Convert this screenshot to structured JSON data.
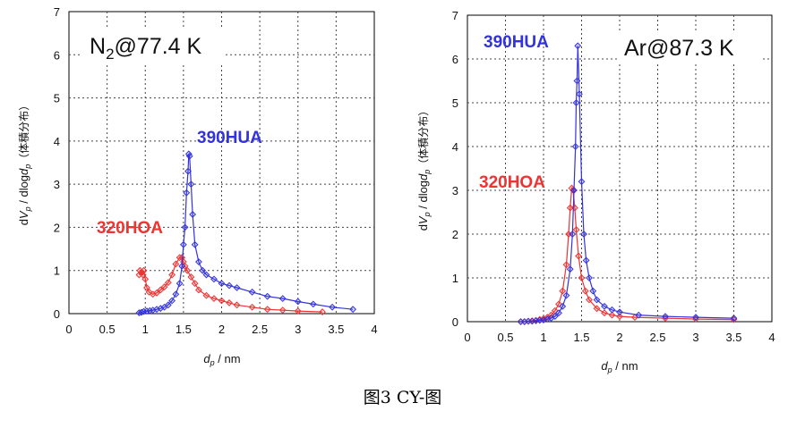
{
  "caption": "图3 CY-图",
  "charts": [
    {
      "type": "line",
      "condition": {
        "main": "N",
        "sub": "2",
        "rest": "@77.4 K"
      },
      "xlabel": {
        "main": "d",
        "sub": "p",
        "rest": " / nm"
      },
      "ylabel": {
        "a": "d",
        "b": "V",
        "bs": "p",
        "c": " / dlog",
        "d": "d",
        "ds": "p",
        "e": "（体積分布）"
      },
      "xlim": [
        0,
        4
      ],
      "ylim": [
        0,
        7
      ],
      "xticks": [
        "0",
        "0.5",
        "1",
        "1.5",
        "2",
        "2.5",
        "3",
        "3.5",
        "4"
      ],
      "yticks": [
        "0",
        "1",
        "2",
        "3",
        "4",
        "5",
        "6",
        "7"
      ],
      "grid": true,
      "series": [
        {
          "name": "390HUA",
          "color": "#3333dd",
          "points": [
            [
              0.92,
              0.02
            ],
            [
              0.95,
              0.03
            ],
            [
              0.98,
              0.05
            ],
            [
              1.02,
              0.06
            ],
            [
              1.06,
              0.07
            ],
            [
              1.1,
              0.08
            ],
            [
              1.15,
              0.1
            ],
            [
              1.2,
              0.12
            ],
            [
              1.25,
              0.15
            ],
            [
              1.3,
              0.2
            ],
            [
              1.35,
              0.3
            ],
            [
              1.4,
              0.45
            ],
            [
              1.45,
              0.7
            ],
            [
              1.48,
              1.1
            ],
            [
              1.5,
              1.6
            ],
            [
              1.52,
              2.0
            ],
            [
              1.54,
              2.8
            ],
            [
              1.56,
              3.3
            ],
            [
              1.57,
              3.7
            ],
            [
              1.58,
              3.65
            ],
            [
              1.6,
              3.0
            ],
            [
              1.62,
              2.3
            ],
            [
              1.65,
              1.6
            ],
            [
              1.7,
              1.2
            ],
            [
              1.75,
              1.0
            ],
            [
              1.8,
              0.9
            ],
            [
              1.9,
              0.8
            ],
            [
              2.0,
              0.7
            ],
            [
              2.1,
              0.65
            ],
            [
              2.2,
              0.6
            ],
            [
              2.4,
              0.5
            ],
            [
              2.6,
              0.4
            ],
            [
              2.8,
              0.35
            ],
            [
              3.0,
              0.28
            ],
            [
              3.2,
              0.22
            ],
            [
              3.45,
              0.15
            ],
            [
              3.72,
              0.1
            ]
          ]
        },
        {
          "name": "320HOA",
          "color": "#ee3333",
          "points": [
            [
              0.92,
              0.9
            ],
            [
              0.93,
              1.0
            ],
            [
              0.95,
              0.95
            ],
            [
              0.97,
              0.9
            ],
            [
              0.98,
              1.0
            ],
            [
              1.0,
              0.8
            ],
            [
              1.02,
              0.6
            ],
            [
              1.05,
              0.5
            ],
            [
              1.1,
              0.45
            ],
            [
              1.15,
              0.48
            ],
            [
              1.2,
              0.55
            ],
            [
              1.25,
              0.62
            ],
            [
              1.3,
              0.72
            ],
            [
              1.35,
              0.9
            ],
            [
              1.4,
              1.15
            ],
            [
              1.45,
              1.3
            ],
            [
              1.48,
              1.3
            ],
            [
              1.5,
              1.2
            ],
            [
              1.52,
              1.1
            ],
            [
              1.55,
              1.0
            ],
            [
              1.6,
              0.85
            ],
            [
              1.65,
              0.7
            ],
            [
              1.7,
              0.55
            ],
            [
              1.8,
              0.42
            ],
            [
              1.9,
              0.35
            ],
            [
              2.0,
              0.3
            ],
            [
              2.1,
              0.25
            ],
            [
              2.2,
              0.2
            ],
            [
              2.4,
              0.15
            ],
            [
              2.6,
              0.1
            ],
            [
              2.8,
              0.08
            ],
            [
              3.0,
              0.06
            ],
            [
              3.32,
              0.04
            ]
          ]
        }
      ]
    },
    {
      "type": "line",
      "condition": {
        "main": "Ar@87.3 K",
        "sub": "",
        "rest": ""
      },
      "xlabel": {
        "main": "d",
        "sub": "p",
        "rest": " / nm"
      },
      "ylabel": {
        "a": "d",
        "b": "V",
        "bs": "p",
        "c": " / dlog",
        "d": "d",
        "ds": "p",
        "e": "（体積分布）"
      },
      "xlim": [
        0,
        4
      ],
      "ylim": [
        0,
        7
      ],
      "xticks": [
        "0",
        "0.5",
        "1",
        "1.5",
        "2",
        "2.5",
        "3",
        "3.5",
        "4"
      ],
      "yticks": [
        "0",
        "1",
        "2",
        "3",
        "4",
        "5",
        "6",
        "7"
      ],
      "grid": true,
      "series": [
        {
          "name": "390HUA",
          "color": "#3333dd",
          "points": [
            [
              0.7,
              0.0
            ],
            [
              0.75,
              0.0
            ],
            [
              0.8,
              0.01
            ],
            [
              0.85,
              0.01
            ],
            [
              0.9,
              0.02
            ],
            [
              0.95,
              0.03
            ],
            [
              1.0,
              0.04
            ],
            [
              1.05,
              0.06
            ],
            [
              1.1,
              0.08
            ],
            [
              1.15,
              0.12
            ],
            [
              1.2,
              0.2
            ],
            [
              1.25,
              0.35
            ],
            [
              1.3,
              0.6
            ],
            [
              1.35,
              1.2
            ],
            [
              1.38,
              2.0
            ],
            [
              1.4,
              3.0
            ],
            [
              1.42,
              4.0
            ],
            [
              1.43,
              5.0
            ],
            [
              1.44,
              5.5
            ],
            [
              1.45,
              6.3
            ],
            [
              1.47,
              5.2
            ],
            [
              1.5,
              3.2
            ],
            [
              1.53,
              2.0
            ],
            [
              1.56,
              1.4
            ],
            [
              1.6,
              1.0
            ],
            [
              1.65,
              0.7
            ],
            [
              1.7,
              0.5
            ],
            [
              1.8,
              0.35
            ],
            [
              1.9,
              0.27
            ],
            [
              2.0,
              0.22
            ],
            [
              2.25,
              0.15
            ],
            [
              2.6,
              0.12
            ],
            [
              3.0,
              0.1
            ],
            [
              3.5,
              0.08
            ]
          ]
        },
        {
          "name": "320HOA",
          "color": "#ee3333",
          "points": [
            [
              0.7,
              0.0
            ],
            [
              0.75,
              0.0
            ],
            [
              0.8,
              0.01
            ],
            [
              0.85,
              0.02
            ],
            [
              0.9,
              0.03
            ],
            [
              0.95,
              0.05
            ],
            [
              1.0,
              0.07
            ],
            [
              1.05,
              0.1
            ],
            [
              1.1,
              0.15
            ],
            [
              1.15,
              0.25
            ],
            [
              1.2,
              0.4
            ],
            [
              1.25,
              0.7
            ],
            [
              1.3,
              1.3
            ],
            [
              1.33,
              2.0
            ],
            [
              1.35,
              2.6
            ],
            [
              1.37,
              3.05
            ],
            [
              1.39,
              3.0
            ],
            [
              1.41,
              2.6
            ],
            [
              1.43,
              2.1
            ],
            [
              1.46,
              1.5
            ],
            [
              1.5,
              1.0
            ],
            [
              1.55,
              0.7
            ],
            [
              1.6,
              0.5
            ],
            [
              1.7,
              0.3
            ],
            [
              1.8,
              0.2
            ],
            [
              1.9,
              0.15
            ],
            [
              2.0,
              0.12
            ],
            [
              2.2,
              0.1
            ],
            [
              2.6,
              0.08
            ],
            [
              3.0,
              0.06
            ],
            [
              3.5,
              0.05
            ]
          ]
        }
      ]
    }
  ]
}
